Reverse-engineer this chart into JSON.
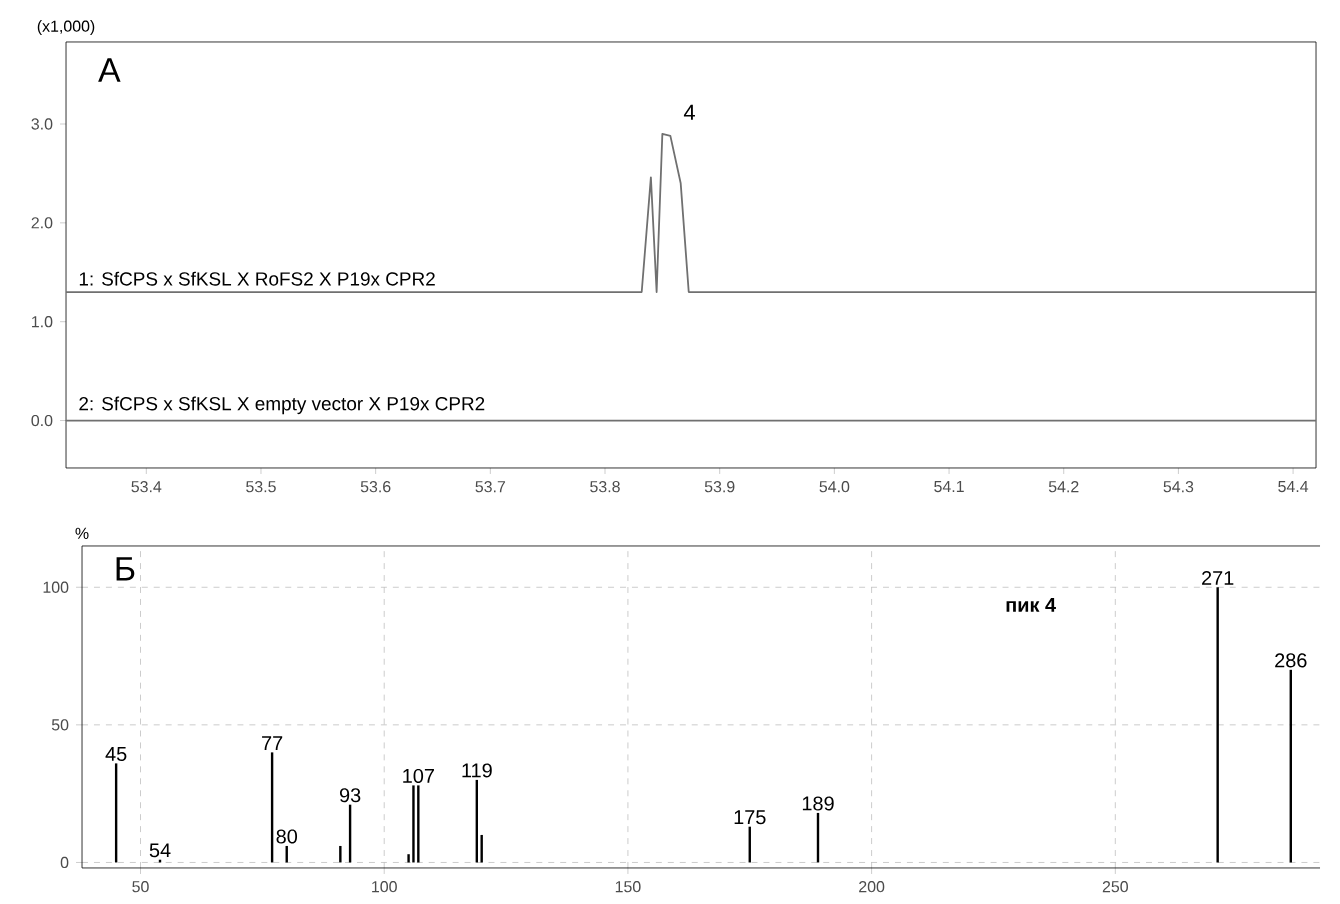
{
  "chart_data": [
    {
      "type": "line",
      "title": "A",
      "ylabel": "(x1,000)",
      "xlim": [
        53.33,
        54.42
      ],
      "ylim": [
        -0.48,
        3.83
      ],
      "xticks": [
        {
          "value": 53.4,
          "label": "53.4"
        },
        {
          "value": 53.5,
          "label": "53.5"
        },
        {
          "value": 53.6,
          "label": "53.6"
        },
        {
          "value": 53.7,
          "label": "53.7"
        },
        {
          "value": 53.8,
          "label": "53.8"
        },
        {
          "value": 53.9,
          "label": "53.9"
        },
        {
          "value": 54.0,
          "label": "54.0"
        },
        {
          "value": 54.1,
          "label": "54.1"
        },
        {
          "value": 54.2,
          "label": "54.2"
        },
        {
          "value": 54.3,
          "label": "54.3"
        },
        {
          "value": 54.4,
          "label": "54.4"
        }
      ],
      "yticks": [
        {
          "value": 0,
          "label": "0.0"
        },
        {
          "value": 1,
          "label": "1.0"
        },
        {
          "value": 2,
          "label": "2.0"
        },
        {
          "value": 3,
          "label": "3.0"
        }
      ],
      "grid": false,
      "series": [
        {
          "name": "1: SfCPS x SfKSL X RoFS2 X P19x CPR2",
          "color": "#707070",
          "x": [
            53.33,
            53.832,
            53.84,
            53.845,
            53.85,
            53.857,
            53.866,
            53.873,
            54.42
          ],
          "values": [
            1.3,
            1.3,
            2.46,
            1.3,
            2.9,
            2.88,
            2.4,
            1.3,
            1.3
          ]
        },
        {
          "name": "2: SfCPS x SfKSL X empty vector X P19x CPR2",
          "color": "#707070",
          "x": [
            53.33,
            54.42
          ],
          "values": [
            0,
            0
          ]
        }
      ],
      "annotations": [
        {
          "text": "4",
          "x": 53.857,
          "y": 2.89
        }
      ]
    },
    {
      "type": "bar",
      "title": "Б",
      "ylabel": "%",
      "xlim": [
        38,
        292
      ],
      "ylim": [
        -2,
        115
      ],
      "xticks": [
        50,
        100,
        150,
        200,
        250
      ],
      "yticks": [
        0,
        50,
        100
      ],
      "grid": true,
      "x": [
        45,
        54,
        77,
        80,
        91,
        93,
        105,
        106,
        107,
        119,
        120,
        175,
        189,
        271,
        286
      ],
      "values": [
        36,
        1,
        40,
        6,
        6,
        21,
        3,
        28,
        28,
        30,
        10,
        13,
        18,
        100,
        70
      ],
      "color": "#000000",
      "annotations": [
        "пик 4",
        {
          "text": "45",
          "x": 45,
          "y": 36
        },
        {
          "text": "54",
          "x": 54,
          "y": 1
        },
        {
          "text": "77",
          "x": 77,
          "y": 40
        },
        {
          "text": "80",
          "x": 80,
          "y": 6
        },
        {
          "text": "93",
          "x": 93,
          "y": 21
        },
        {
          "text": "107",
          "x": 107,
          "y": 28
        },
        {
          "text": "119",
          "x": 119,
          "y": 30
        },
        {
          "text": "175",
          "x": 175,
          "y": 13
        },
        {
          "text": "189",
          "x": 189,
          "y": 18
        },
        {
          "text": "271",
          "x": 271,
          "y": 100
        },
        {
          "text": "286",
          "x": 286,
          "y": 70
        }
      ]
    }
  ]
}
